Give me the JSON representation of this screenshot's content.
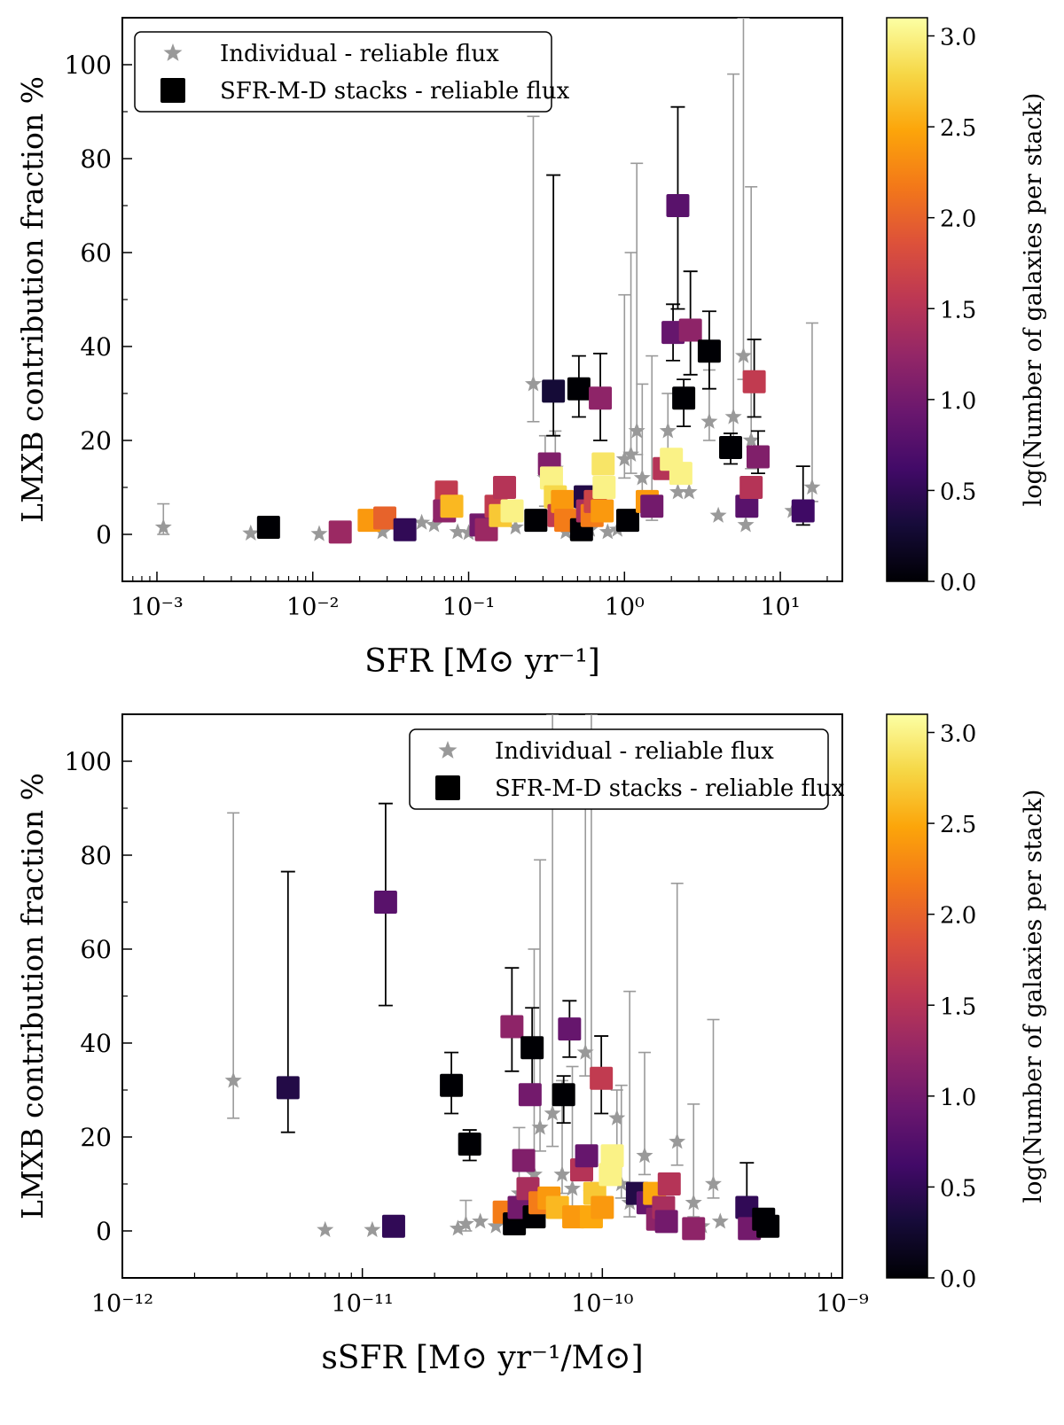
{
  "chart_data": [
    {
      "type": "scatter",
      "xscale": "log",
      "xlabel": "SFR [M⊙ yr⁻¹]",
      "ylabel": "LMXB contribution fraction %",
      "xlim": [
        0.0006,
        25
      ],
      "ylim": [
        -10,
        110
      ],
      "xticks": [
        {
          "v": 0.001,
          "label": "10⁻³"
        },
        {
          "v": 0.01,
          "label": "10⁻²"
        },
        {
          "v": 0.1,
          "label": "10⁻¹"
        },
        {
          "v": 1,
          "label": "10⁰"
        },
        {
          "v": 10,
          "label": "10¹"
        }
      ],
      "yticks": [
        0,
        20,
        40,
        60,
        80,
        100
      ],
      "colorbar": {
        "label": "log(Number of galaxies per stack)",
        "range": [
          0,
          3.1
        ],
        "ticks": [
          "0.0",
          "0.5",
          "1.0",
          "1.5",
          "2.0",
          "2.5",
          "3.0"
        ]
      },
      "legend": {
        "position": "top-left",
        "entries": [
          "Individual - reliable flux",
          "SFR-M-D stacks - reliable flux"
        ]
      },
      "series": [
        {
          "name": "Individual - reliable flux",
          "marker": "star",
          "color": "#999999",
          "points": [
            {
              "x": 0.0011,
              "y": 1.5,
              "hi": 6.5,
              "lo": 0
            },
            {
              "x": 0.004,
              "y": 0.2
            },
            {
              "x": 0.011,
              "y": 0.1
            },
            {
              "x": 0.028,
              "y": 0.5
            },
            {
              "x": 0.05,
              "y": 2.5
            },
            {
              "x": 0.06,
              "y": 2
            },
            {
              "x": 0.085,
              "y": 0.5
            },
            {
              "x": 0.1,
              "y": 0.3
            },
            {
              "x": 0.13,
              "y": 1
            },
            {
              "x": 0.2,
              "y": 1.5
            },
            {
              "x": 0.26,
              "y": 32,
              "hi": 89,
              "lo": 24
            },
            {
              "x": 0.31,
              "y": 12,
              "hi": 21,
              "lo": 6
            },
            {
              "x": 0.36,
              "y": 14,
              "hi": 22,
              "lo": 8
            },
            {
              "x": 0.42,
              "y": 0.5
            },
            {
              "x": 0.6,
              "y": 1
            },
            {
              "x": 0.78,
              "y": 0.5
            },
            {
              "x": 0.9,
              "y": 1
            },
            {
              "x": 1.0,
              "y": 16,
              "hi": 51,
              "lo": 12
            },
            {
              "x": 1.1,
              "y": 17,
              "hi": 60,
              "lo": 13
            },
            {
              "x": 1.2,
              "y": 22,
              "hi": 79,
              "lo": 17
            },
            {
              "x": 1.3,
              "y": 12,
              "hi": 32,
              "lo": 8
            },
            {
              "x": 1.5,
              "y": 6,
              "hi": 38,
              "lo": 3
            },
            {
              "x": 1.9,
              "y": 22,
              "hi": 30,
              "lo": 15
            },
            {
              "x": 2.2,
              "y": 9
            },
            {
              "x": 2.6,
              "y": 9
            },
            {
              "x": 3.5,
              "y": 24,
              "hi": 35,
              "lo": 20
            },
            {
              "x": 4.0,
              "y": 4
            },
            {
              "x": 5.0,
              "y": 25,
              "hi": 98,
              "lo": 20
            },
            {
              "x": 5.8,
              "y": 38,
              "hi": 110,
              "lo": 33
            },
            {
              "x": 6.0,
              "y": 2
            },
            {
              "x": 6.5,
              "y": 20,
              "hi": 74,
              "lo": 14
            },
            {
              "x": 12,
              "y": 5
            },
            {
              "x": 16,
              "y": 10,
              "hi": 45,
              "lo": 7
            }
          ]
        },
        {
          "name": "SFR-M-D stacks - reliable flux",
          "marker": "square",
          "colormap": "inferno",
          "points": [
            {
              "x": 0.0052,
              "y": 1.5,
              "c": 0.0
            },
            {
              "x": 0.015,
              "y": 0.5,
              "c": 1.3
            },
            {
              "x": 0.023,
              "y": 3,
              "c": 2.4
            },
            {
              "x": 0.029,
              "y": 3.5,
              "c": 2.0
            },
            {
              "x": 0.039,
              "y": 1,
              "c": 0.5
            },
            {
              "x": 0.072,
              "y": 9,
              "c": 1.6
            },
            {
              "x": 0.07,
              "y": 5,
              "c": 1.2
            },
            {
              "x": 0.078,
              "y": 6,
              "c": 2.6
            },
            {
              "x": 0.12,
              "y": 2,
              "c": 1.0
            },
            {
              "x": 0.13,
              "y": 1,
              "c": 1.3
            },
            {
              "x": 0.15,
              "y": 6,
              "c": 1.6
            },
            {
              "x": 0.17,
              "y": 10,
              "c": 1.5
            },
            {
              "x": 0.16,
              "y": 4,
              "c": 2.7
            },
            {
              "x": 0.19,
              "y": 5,
              "c": 3.0
            },
            {
              "x": 0.27,
              "y": 3,
              "c": 0.0
            },
            {
              "x": 0.33,
              "y": 15,
              "c": 1.1
            },
            {
              "x": 0.35,
              "y": 30.5,
              "c": 0.3,
              "hi": 76.5,
              "lo": 21
            },
            {
              "x": 0.34,
              "y": 12,
              "c": 3.0
            },
            {
              "x": 0.36,
              "y": 8,
              "c": 2.8
            },
            {
              "x": 0.38,
              "y": 4,
              "c": 1.6
            },
            {
              "x": 0.4,
              "y": 7,
              "c": 2.4
            },
            {
              "x": 0.42,
              "y": 3,
              "c": 2.2
            },
            {
              "x": 0.51,
              "y": 31,
              "c": 0.0,
              "hi": 38,
              "lo": 25
            },
            {
              "x": 0.53,
              "y": 1,
              "c": 0.0
            },
            {
              "x": 0.56,
              "y": 8,
              "c": 0.4
            },
            {
              "x": 0.58,
              "y": 5,
              "c": 1.4
            },
            {
              "x": 0.62,
              "y": 4,
              "c": 2.2
            },
            {
              "x": 0.65,
              "y": 7,
              "c": 1.7
            },
            {
              "x": 0.7,
              "y": 29,
              "c": 1.2,
              "hi": 38.5,
              "lo": 20
            },
            {
              "x": 0.73,
              "y": 15,
              "c": 2.9
            },
            {
              "x": 0.74,
              "y": 10,
              "c": 3.0
            },
            {
              "x": 0.72,
              "y": 5,
              "c": 2.4
            },
            {
              "x": 1.05,
              "y": 3,
              "c": 0.0
            },
            {
              "x": 1.4,
              "y": 7,
              "c": 2.4
            },
            {
              "x": 1.5,
              "y": 6,
              "c": 1.0
            },
            {
              "x": 1.8,
              "y": 14,
              "c": 1.5
            },
            {
              "x": 2.0,
              "y": 16,
              "c": 3.0
            },
            {
              "x": 2.05,
              "y": 43,
              "c": 0.9,
              "hi": 49,
              "lo": 37
            },
            {
              "x": 2.2,
              "y": 70,
              "c": 0.8,
              "hi": 91,
              "lo": 48
            },
            {
              "x": 2.3,
              "y": 13,
              "c": 3.0
            },
            {
              "x": 2.4,
              "y": 29,
              "c": 0.0,
              "hi": 33,
              "lo": 23
            },
            {
              "x": 2.65,
              "y": 43.5,
              "c": 1.2,
              "hi": 56,
              "lo": 34
            },
            {
              "x": 3.5,
              "y": 39,
              "c": 0.0,
              "hi": 47.5,
              "lo": 31
            },
            {
              "x": 4.8,
              "y": 18.5,
              "c": 0.0,
              "hi": 21.5,
              "lo": 15
            },
            {
              "x": 6.1,
              "y": 6,
              "c": 0.8
            },
            {
              "x": 6.5,
              "y": 10,
              "c": 1.5
            },
            {
              "x": 6.8,
              "y": 32.5,
              "c": 1.6,
              "hi": 41.5,
              "lo": 25
            },
            {
              "x": 7.2,
              "y": 16.5,
              "c": 1.1,
              "hi": 22,
              "lo": 13
            },
            {
              "x": 14,
              "y": 5,
              "c": 0.6,
              "hi": 14.5,
              "lo": 2
            }
          ]
        }
      ]
    },
    {
      "type": "scatter",
      "xscale": "log",
      "xlabel": "sSFR [M⊙ yr⁻¹/M⊙]",
      "ylabel": "LMXB contribution fraction %",
      "xlim": [
        1e-12,
        1e-09
      ],
      "ylim": [
        -10,
        110
      ],
      "xticks": [
        {
          "v": 1e-12,
          "label": "10⁻¹²"
        },
        {
          "v": 1e-11,
          "label": "10⁻¹¹"
        },
        {
          "v": 1e-10,
          "label": "10⁻¹⁰"
        },
        {
          "v": 1e-09,
          "label": "10⁻⁹"
        }
      ],
      "yticks": [
        0,
        20,
        40,
        60,
        80,
        100
      ],
      "colorbar": {
        "label": "log(Number of galaxies per stack)",
        "range": [
          0,
          3.1
        ],
        "ticks": [
          "0.0",
          "0.5",
          "1.0",
          "1.5",
          "2.0",
          "2.5",
          "3.0"
        ]
      },
      "legend": {
        "position": "top-right",
        "entries": [
          "Individual - reliable flux",
          "SFR-M-D stacks - reliable flux"
        ]
      },
      "series": [
        {
          "name": "Individual - reliable flux",
          "marker": "star",
          "color": "#999999",
          "points": [
            {
              "x": 2.9e-12,
              "y": 32,
              "hi": 89,
              "lo": 24
            },
            {
              "x": 7e-12,
              "y": 0.2
            },
            {
              "x": 1.1e-11,
              "y": 0.2
            },
            {
              "x": 2.5e-11,
              "y": 0.5
            },
            {
              "x": 2.7e-11,
              "y": 1.5,
              "hi": 6.5,
              "lo": 0
            },
            {
              "x": 3.1e-11,
              "y": 2
            },
            {
              "x": 3.6e-11,
              "y": 1
            },
            {
              "x": 4.5e-11,
              "y": 8,
              "hi": 22,
              "lo": 5
            },
            {
              "x": 5.2e-11,
              "y": 12,
              "hi": 60,
              "lo": 8
            },
            {
              "x": 5.5e-11,
              "y": 22,
              "hi": 79,
              "lo": 17
            },
            {
              "x": 6.2e-11,
              "y": 25,
              "hi": 110,
              "lo": 18
            },
            {
              "x": 6.8e-11,
              "y": 12,
              "hi": 32,
              "lo": 8
            },
            {
              "x": 7.5e-11,
              "y": 9,
              "hi": 35,
              "lo": 5
            },
            {
              "x": 8.5e-11,
              "y": 38,
              "hi": 98,
              "lo": 33
            },
            {
              "x": 9e-11,
              "y": 8,
              "hi": 110,
              "lo": 5
            },
            {
              "x": 1.15e-10,
              "y": 24,
              "hi": 30,
              "lo": 15
            },
            {
              "x": 1.2e-10,
              "y": 10,
              "hi": 31,
              "lo": 7
            },
            {
              "x": 1.3e-10,
              "y": 6,
              "hi": 51,
              "lo": 3
            },
            {
              "x": 1.5e-10,
              "y": 16,
              "hi": 38,
              "lo": 12
            },
            {
              "x": 2.05e-10,
              "y": 19,
              "hi": 74,
              "lo": 14
            },
            {
              "x": 2.4e-10,
              "y": 6,
              "hi": 27,
              "lo": 3
            },
            {
              "x": 2.9e-10,
              "y": 10,
              "hi": 45,
              "lo": 7
            },
            {
              "x": 3.1e-10,
              "y": 2
            },
            {
              "x": 2.6e-10,
              "y": 1
            }
          ]
        },
        {
          "name": "SFR-M-D stacks - reliable flux",
          "marker": "square",
          "colormap": "inferno",
          "points": [
            {
              "x": 4.9e-12,
              "y": 30.5,
              "c": 0.4,
              "hi": 76.5,
              "lo": 21
            },
            {
              "x": 1.25e-11,
              "y": 70,
              "c": 0.8,
              "hi": 91,
              "lo": 48
            },
            {
              "x": 1.35e-11,
              "y": 1,
              "c": 0.5
            },
            {
              "x": 2.35e-11,
              "y": 31,
              "c": 0.0,
              "hi": 38,
              "lo": 25
            },
            {
              "x": 2.8e-11,
              "y": 18.5,
              "c": 0.0,
              "hi": 21.5,
              "lo": 15
            },
            {
              "x": 3.9e-11,
              "y": 4,
              "c": 2.2
            },
            {
              "x": 4.2e-11,
              "y": 43.5,
              "c": 1.2,
              "hi": 56,
              "lo": 34
            },
            {
              "x": 4.3e-11,
              "y": 1.5,
              "c": 0.0
            },
            {
              "x": 4.5e-11,
              "y": 5,
              "c": 1.0
            },
            {
              "x": 4.7e-11,
              "y": 15,
              "c": 1.1
            },
            {
              "x": 4.9e-11,
              "y": 9,
              "c": 1.4
            },
            {
              "x": 5e-11,
              "y": 29,
              "c": 1.0
            },
            {
              "x": 5.1e-11,
              "y": 39,
              "c": 0.0,
              "hi": 47.5,
              "lo": 31
            },
            {
              "x": 5.2e-11,
              "y": 3,
              "c": 0.0
            },
            {
              "x": 5.5e-11,
              "y": 6,
              "c": 2.2
            },
            {
              "x": 6e-11,
              "y": 7,
              "c": 2.4
            },
            {
              "x": 6.5e-11,
              "y": 5,
              "c": 2.6
            },
            {
              "x": 6.9e-11,
              "y": 29,
              "c": 0.0,
              "hi": 33,
              "lo": 23
            },
            {
              "x": 7.3e-11,
              "y": 43,
              "c": 0.9,
              "hi": 49,
              "lo": 37
            },
            {
              "x": 7.6e-11,
              "y": 3,
              "c": 2.4
            },
            {
              "x": 8.2e-11,
              "y": 13,
              "c": 1.5
            },
            {
              "x": 8.6e-11,
              "y": 16,
              "c": 0.9
            },
            {
              "x": 9e-11,
              "y": 3,
              "c": 2.5
            },
            {
              "x": 9.3e-11,
              "y": 8,
              "c": 2.7
            },
            {
              "x": 9.9e-11,
              "y": 32.5,
              "c": 1.6,
              "hi": 41.5,
              "lo": 25
            },
            {
              "x": 1e-10,
              "y": 5,
              "c": 2.4
            },
            {
              "x": 1.08e-10,
              "y": 12,
              "c": 3.0
            },
            {
              "x": 1.1e-10,
              "y": 16,
              "c": 3.0
            },
            {
              "x": 1.4e-10,
              "y": 8,
              "c": 0.4
            },
            {
              "x": 1.55e-10,
              "y": 6,
              "c": 0.9
            },
            {
              "x": 1.65e-10,
              "y": 8,
              "c": 2.5
            },
            {
              "x": 1.7e-10,
              "y": 2.5,
              "c": 1.2
            },
            {
              "x": 1.8e-10,
              "y": 5,
              "c": 1.4
            },
            {
              "x": 1.9e-10,
              "y": 10,
              "c": 1.5
            },
            {
              "x": 1.85e-10,
              "y": 2,
              "c": 1.0
            },
            {
              "x": 2.4e-10,
              "y": 0.5,
              "c": 1.2
            },
            {
              "x": 4e-10,
              "y": 5,
              "c": 0.5,
              "hi": 14.5,
              "lo": 2
            },
            {
              "x": 4.1e-10,
              "y": 0.5,
              "c": 1.0
            },
            {
              "x": 4.7e-10,
              "y": 2.5,
              "c": 0.0
            },
            {
              "x": 4.9e-10,
              "y": 1,
              "c": 0.0
            }
          ]
        }
      ]
    }
  ]
}
